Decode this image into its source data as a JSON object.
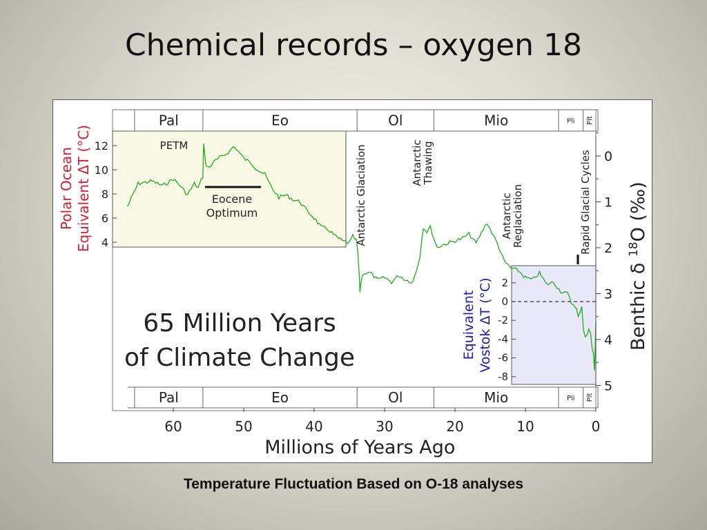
{
  "slide": {
    "title": "Chemical records – oxygen 18",
    "caption": "Temperature Fluctuation Based on O-18 analyses"
  },
  "chart_data": {
    "type": "line",
    "title": "65 Million Years of Climate Change",
    "title_lines": [
      "65 Million Years",
      "of Climate Change"
    ],
    "xlabel": "Millions of Years Ago",
    "xlim": [
      67,
      0
    ],
    "x_ticks": [
      60,
      50,
      40,
      30,
      20,
      10,
      0
    ],
    "ylabel_right": "Benthic δ 18O (‰)",
    "ylabel_right_parts": [
      "Benthic δ ",
      "18",
      "O (‰)"
    ],
    "ylim_right": [
      5,
      -0.5
    ],
    "y_ticks_right": [
      0,
      1,
      2,
      3,
      4,
      5
    ],
    "ylabel_left_lines": [
      "Polar Ocean",
      "Equivalent ΔT (°C)"
    ],
    "y_ticks_left": [
      4,
      6,
      8,
      10,
      12
    ],
    "ylabel_inset_lines": [
      "Equivalent",
      "Vostok ΔT (°C)"
    ],
    "y_ticks_inset": [
      2,
      0,
      -2,
      -4,
      -6,
      -8
    ],
    "epochs": [
      {
        "label": "Pal",
        "from": 65.5,
        "to": 55.8
      },
      {
        "label": "Eo",
        "from": 55.8,
        "to": 33.9
      },
      {
        "label": "Ol",
        "from": 33.9,
        "to": 23.0
      },
      {
        "label": "Mio",
        "from": 23.0,
        "to": 5.3
      },
      {
        "label": "Pli",
        "from": 5.3,
        "to": 1.8
      },
      {
        "label": "Plt",
        "from": 1.8,
        "to": 0
      }
    ],
    "annotations": [
      {
        "id": "petm",
        "lines": [
          "PETM"
        ]
      },
      {
        "id": "eocene-optimum",
        "lines": [
          "Eocene",
          "Optimum"
        ]
      },
      {
        "id": "antarctic-glaciation",
        "lines": [
          "Antarctic Glaciation"
        ]
      },
      {
        "id": "antarctic-thawing",
        "lines": [
          "Antarctic",
          "Thawing"
        ]
      },
      {
        "id": "antarctic-reglaciation",
        "lines": [
          "Antarctic",
          "Reglaciation"
        ]
      },
      {
        "id": "rapid-glacial-cycles",
        "lines": [
          "Rapid Glacial Cycles"
        ]
      }
    ],
    "series": [
      {
        "color": "#1faa1f",
        "x": [
          66.5,
          65,
          63,
          61.5,
          60,
          59,
          58,
          57,
          56.5,
          55.8,
          55.7,
          55.4,
          55,
          54,
          53,
          52,
          51.5,
          51,
          50,
          49,
          48,
          47,
          46,
          45,
          44,
          43,
          42,
          41,
          40,
          39,
          38,
          37,
          36,
          35,
          34.5,
          34,
          33.8,
          33.6,
          33.5,
          33.3,
          33,
          32,
          31,
          30,
          29,
          28,
          27,
          26,
          25.5,
          25,
          24.5,
          24,
          23.5,
          23,
          22.5,
          22,
          21,
          20,
          19,
          18,
          17,
          16,
          15.5,
          15,
          14.5,
          14,
          13.5,
          13,
          12,
          11,
          10,
          9,
          8,
          7,
          6,
          5,
          4,
          3.5,
          3,
          2.5,
          2,
          1.5,
          1,
          0.5,
          0.2,
          0
        ],
        "y": [
          1.1,
          0.6,
          0.55,
          0.65,
          0.5,
          0.65,
          0.85,
          0.6,
          0.7,
          0.45,
          -0.3,
          0.2,
          0.25,
          0.1,
          0.0,
          -0.1,
          -0.2,
          -0.15,
          0.05,
          0.15,
          0.3,
          0.4,
          0.7,
          0.9,
          0.85,
          0.95,
          1.0,
          1.2,
          1.35,
          1.55,
          1.6,
          1.75,
          1.85,
          1.9,
          1.75,
          1.85,
          2.1,
          2.6,
          2.95,
          2.7,
          2.55,
          2.55,
          2.7,
          2.65,
          2.75,
          2.6,
          2.7,
          2.75,
          2.5,
          2.2,
          1.55,
          1.65,
          1.55,
          1.8,
          2.0,
          1.95,
          1.9,
          1.85,
          1.8,
          1.7,
          1.9,
          1.6,
          1.45,
          1.6,
          1.75,
          1.9,
          2.1,
          2.3,
          2.45,
          2.5,
          2.65,
          2.7,
          2.55,
          2.8,
          2.75,
          2.95,
          3.0,
          3.2,
          3.25,
          3.55,
          3.4,
          3.9,
          3.7,
          4.2,
          4.6,
          3.6
        ]
      }
    ],
    "grid": false
  }
}
